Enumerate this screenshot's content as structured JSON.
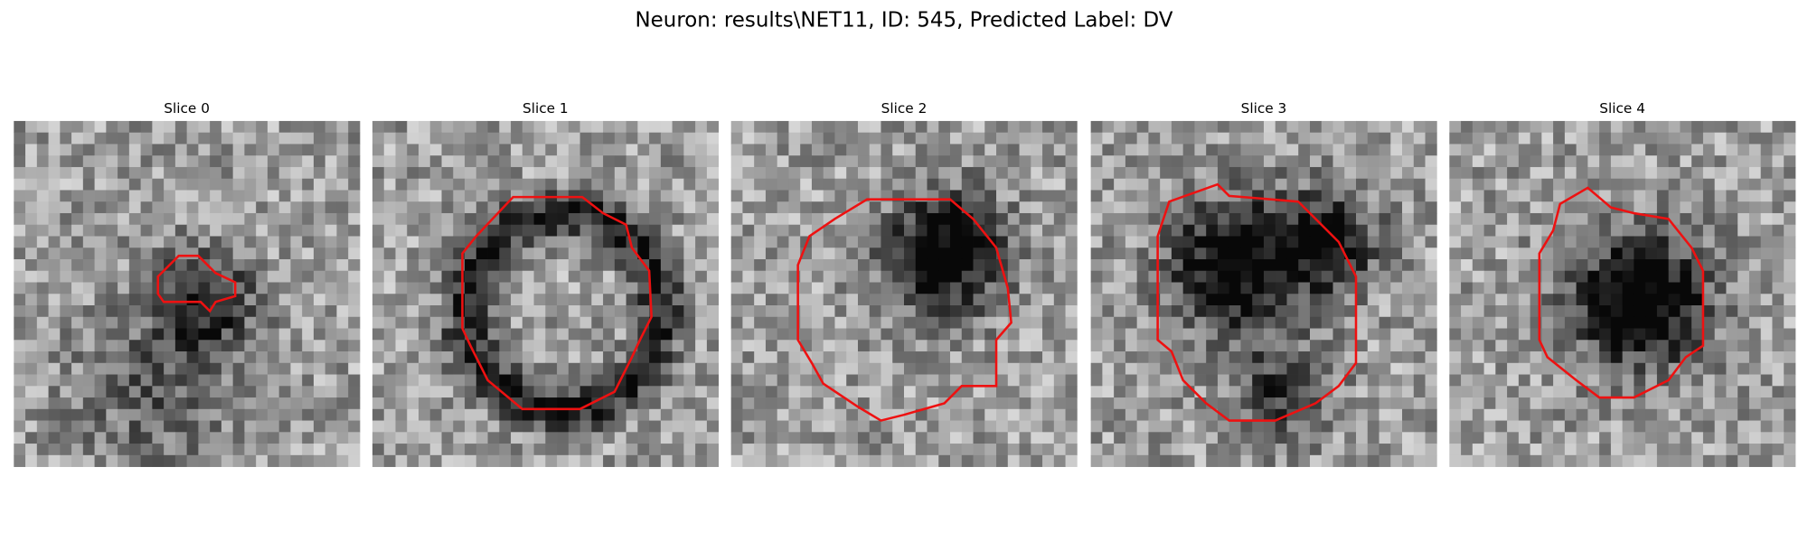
{
  "title": "Neuron: results\\NET11, ID: 545, Predicted Label: DV",
  "panels": [
    {
      "title": "Slice 0"
    },
    {
      "title": "Slice 1"
    },
    {
      "title": "Slice 2"
    },
    {
      "title": "Slice 3"
    },
    {
      "title": "Slice 4"
    }
  ]
}
